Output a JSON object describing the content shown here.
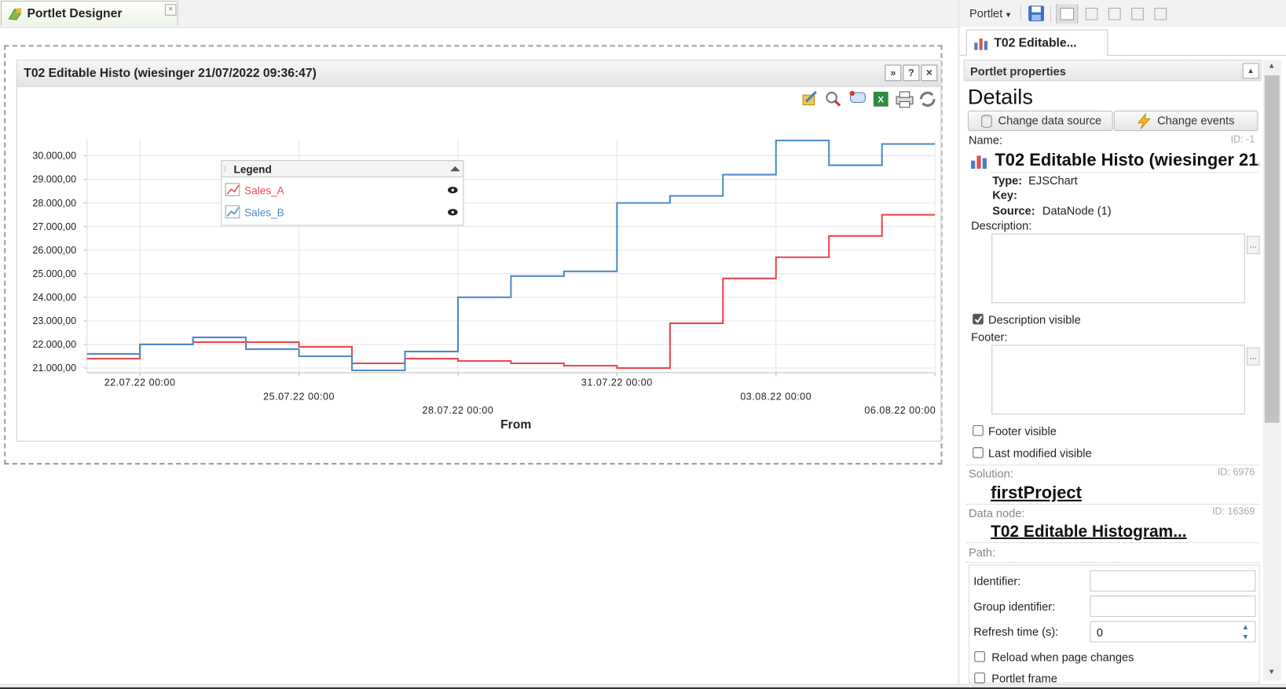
{
  "tab_title": "Portlet Designer",
  "portlet_title": "T02 Editable Histo (wiesinger 21/07/2022 09:36:47)",
  "chart_data": {
    "type": "line",
    "step": "post",
    "xlabel": "From",
    "legend_title": "Legend",
    "x": [
      null,
      "22.07.22 00:00",
      null,
      null,
      "25.07.22 00:00",
      null,
      null,
      "28.07.22 00:00",
      null,
      null,
      "31.07.22 00:00",
      null,
      null,
      "03.08.22 00:00",
      null,
      null,
      "06.08.22 00:00"
    ],
    "series": [
      {
        "name": "Sales_A",
        "color": "#e8474c",
        "values": [
          21400,
          22000,
          22100,
          22100,
          21900,
          21200,
          21400,
          21300,
          21200,
          21100,
          21000,
          22900,
          24800,
          25700,
          26600,
          27500,
          27500
        ]
      },
      {
        "name": "Sales_B",
        "color": "#4f8ac9",
        "values": [
          21600,
          22000,
          22300,
          21800,
          21500,
          20900,
          21700,
          24000,
          24900,
          25100,
          28000,
          28300,
          29200,
          30650,
          29600,
          30500,
          30500
        ]
      }
    ],
    "ylim": [
      20800,
      30700
    ],
    "yticks": [
      {
        "value": 21000,
        "label": "21.000,00"
      },
      {
        "value": 22000,
        "label": "22.000,00"
      },
      {
        "value": 23000,
        "label": "23.000,00"
      },
      {
        "value": 24000,
        "label": "24.000,00"
      },
      {
        "value": 25000,
        "label": "25.000,00"
      },
      {
        "value": 26000,
        "label": "26.000,00"
      },
      {
        "value": 27000,
        "label": "27.000,00"
      },
      {
        "value": 28000,
        "label": "28.000,00"
      },
      {
        "value": 29000,
        "label": "29.000,00"
      },
      {
        "value": 30000,
        "label": "30.000,00"
      }
    ],
    "grid": true
  },
  "properties": {
    "menu": "Portlet",
    "tab": "T02 Editable...",
    "header": "Portlet properties",
    "section": "Details",
    "buttons": [
      "Change data source",
      "Change events"
    ],
    "name_label": "Name:",
    "name_id": "ID: -1",
    "name": "T02 Editable Histo (wiesinger 21/",
    "type_label": "Type:",
    "type": "EJSChart",
    "key_label": "Key:",
    "source_label": "Source:",
    "source": "DataNode (1)",
    "description_label": "Description:",
    "description_visible": "Description visible",
    "footer_label": "Footer:",
    "footer_visible": "Footer visible",
    "last_modified_visible": "Last modified visible",
    "solution_label": "Solution:",
    "solution_id": "ID: 6976",
    "solution": "firstProject",
    "data_node_label": "Data node:",
    "data_node_id": "ID: 16369",
    "data_node": "T02 Editable Histogram...",
    "path_label": "Path:",
    "identifier_label": "Identifier:",
    "group_identifier_label": "Group identifier:",
    "refresh_time_label": "Refresh time (s):",
    "refresh_time": "0",
    "reload_label": "Reload when page changes",
    "frame_label": "Portlet frame",
    "ellipsis": "..."
  }
}
